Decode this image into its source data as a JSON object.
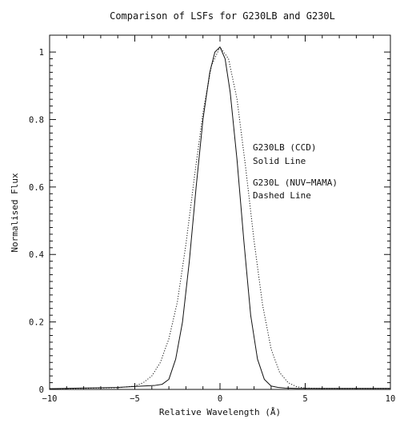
{
  "chart_data": {
    "type": "line",
    "title": "Comparison of LSFs for G230LB and G230L",
    "xlabel": "Relative Wavelength (Å)",
    "ylabel": "Normalised Flux",
    "xlim": [
      -10,
      10
    ],
    "ylim": [
      0,
      1.05
    ],
    "x_ticks": [
      -10,
      -5,
      0,
      5,
      10
    ],
    "x_tick_labels": [
      "−10",
      "−5",
      "0",
      "5",
      "10"
    ],
    "y_ticks": [
      0,
      0.2,
      0.4,
      0.6,
      0.8,
      1
    ],
    "y_tick_labels": [
      "0",
      "0.2",
      "0.4",
      "0.6",
      "0.8",
      "1"
    ],
    "grid": false,
    "annotations": [
      "G230LB (CCD)",
      "Solid Line",
      "G230L (NUV−MAMA)",
      "Dashed Line"
    ],
    "series": [
      {
        "style": "solid",
        "x": [
          -10,
          -8,
          -6,
          -4.5,
          -3.8,
          -3.4,
          -3.0,
          -2.6,
          -2.2,
          -1.8,
          -1.4,
          -1.0,
          -0.6,
          -0.3,
          0,
          0.3,
          0.6,
          1.0,
          1.4,
          1.8,
          2.2,
          2.6,
          3.0,
          3.4,
          3.8,
          4.5,
          6,
          8,
          10
        ],
        "values": [
          0.002,
          0.004,
          0.006,
          0.01,
          0.012,
          0.015,
          0.03,
          0.09,
          0.2,
          0.38,
          0.6,
          0.8,
          0.94,
          1.0,
          1.015,
          0.98,
          0.88,
          0.68,
          0.44,
          0.22,
          0.09,
          0.03,
          0.01,
          0.006,
          0.004,
          0.003,
          0.003,
          0.003,
          0.003
        ]
      },
      {
        "style": "dotted",
        "x": [
          -10,
          -8,
          -6,
          -5,
          -4.5,
          -4.0,
          -3.5,
          -3.0,
          -2.5,
          -2.0,
          -1.5,
          -1.0,
          -0.5,
          0,
          0.5,
          1.0,
          1.5,
          2.0,
          2.5,
          3.0,
          3.5,
          4.0,
          4.5,
          5,
          6,
          8,
          10
        ],
        "values": [
          0.002,
          0.003,
          0.005,
          0.01,
          0.02,
          0.04,
          0.08,
          0.15,
          0.26,
          0.43,
          0.63,
          0.82,
          0.96,
          1.015,
          0.98,
          0.86,
          0.66,
          0.44,
          0.25,
          0.12,
          0.05,
          0.02,
          0.008,
          0.004,
          0.003,
          0.003,
          0.003
        ]
      }
    ]
  }
}
